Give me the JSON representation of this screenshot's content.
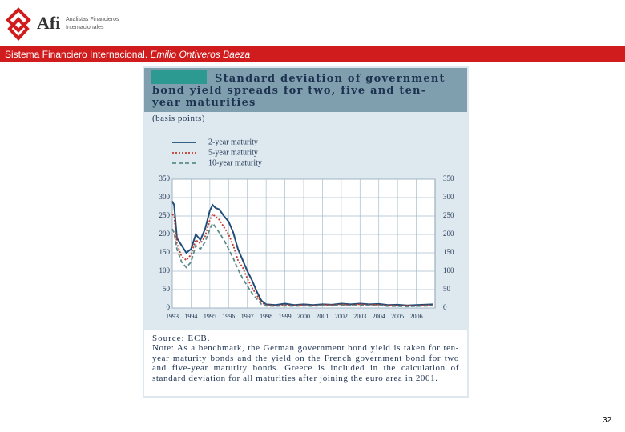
{
  "header": {
    "logo": "Afi",
    "company_lines": [
      "Analistas Financieros",
      "Internacionales"
    ],
    "banner": "Sistema Financiero Internacional.",
    "author": "Emilio Ontiveros Baeza"
  },
  "chart_data": {
    "type": "line",
    "title": "Standard deviation of government bond yield spreads for two, five and ten-year maturities",
    "subtitle": "(basis points)",
    "x": [
      1993.0,
      1993.1,
      1993.25,
      1993.5,
      1993.75,
      1994.0,
      1994.25,
      1994.5,
      1994.75,
      1995.0,
      1995.15,
      1995.3,
      1995.5,
      1995.75,
      1996.0,
      1996.25,
      1996.5,
      1996.75,
      1997.0,
      1997.25,
      1997.5,
      1997.75,
      1998.0,
      1998.5,
      1999.0,
      1999.5,
      2000.0,
      2000.5,
      2001.0,
      2001.5,
      2002.0,
      2002.5,
      2003.0,
      2003.5,
      2004.0,
      2004.5,
      2005.0,
      2005.5,
      2006.0,
      2006.9
    ],
    "series": [
      {
        "name": "2-year maturity",
        "color": "#1f4e79",
        "dash": "solid",
        "values": [
          290,
          280,
          190,
          170,
          150,
          160,
          200,
          185,
          215,
          265,
          280,
          272,
          268,
          250,
          235,
          205,
          160,
          130,
          100,
          75,
          45,
          20,
          10,
          8,
          12,
          8,
          10,
          8,
          10,
          9,
          12,
          10,
          12,
          10,
          11,
          8,
          9,
          7,
          8,
          10
        ]
      },
      {
        "name": "5-year maturity",
        "color": "#c0392b",
        "dash": "dotted",
        "values": [
          255,
          250,
          175,
          140,
          130,
          145,
          185,
          175,
          195,
          240,
          255,
          248,
          240,
          220,
          200,
          170,
          130,
          110,
          80,
          55,
          35,
          15,
          8,
          6,
          8,
          7,
          8,
          6,
          9,
          8,
          10,
          8,
          10,
          9,
          9,
          7,
          7,
          6,
          6,
          8
        ]
      },
      {
        "name": "10-year maturity",
        "color": "#5a8a8a",
        "dash": "dashed",
        "values": [
          215,
          205,
          160,
          125,
          110,
          125,
          170,
          160,
          180,
          215,
          230,
          220,
          205,
          185,
          160,
          135,
          105,
          80,
          60,
          40,
          25,
          10,
          6,
          5,
          6,
          5,
          6,
          5,
          7,
          6,
          8,
          6,
          7,
          7,
          7,
          5,
          5,
          4,
          5,
          6
        ]
      }
    ],
    "xlim": [
      1993,
      2007
    ],
    "xticks": [
      1993,
      1994,
      1995,
      1996,
      1997,
      1998,
      1999,
      2000,
      2001,
      2002,
      2003,
      2004,
      2005,
      2006
    ],
    "ylim": [
      0,
      350
    ],
    "yticks": [
      0,
      50,
      100,
      150,
      200,
      250,
      300,
      350
    ],
    "grid": true,
    "source": "Source: ECB.",
    "note": "Note: As a benchmark, the German government bond yield is taken for ten-year maturity bonds and the yield on the French government bond for two and five-year maturity bonds. Greece is included in the calculation of standard deviation for all maturities after joining the euro area in 2001."
  },
  "footer": {
    "page_number": "32"
  }
}
